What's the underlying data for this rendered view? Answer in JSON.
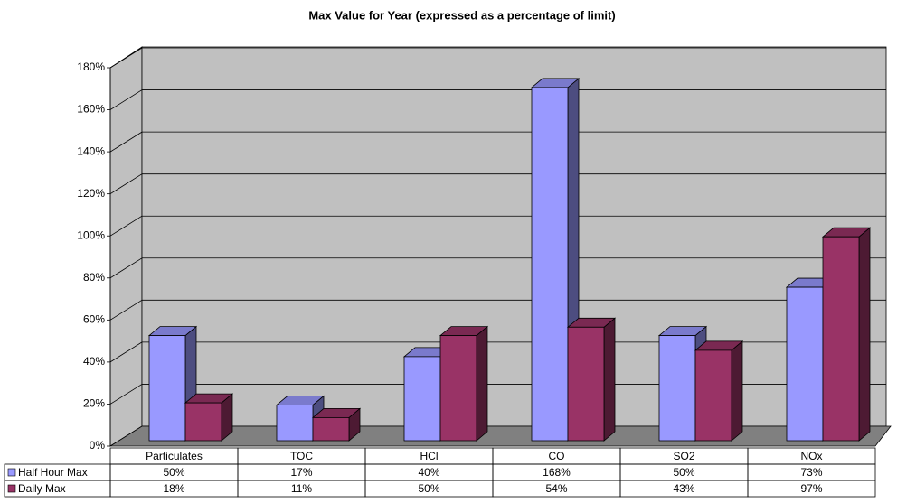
{
  "chart_data": {
    "type": "bar3d",
    "title": "Max Value for Year (expressed as a percentage of limit)",
    "categories": [
      "Particulates",
      "TOC",
      "HCl",
      "CO",
      "SO2",
      "NOx"
    ],
    "series": [
      {
        "name": "Half Hour Max",
        "color": "#9999ff",
        "values": [
          50,
          17,
          40,
          168,
          50,
          73
        ],
        "value_labels": [
          "50%",
          "17%",
          "40%",
          "168%",
          "50%",
          "73%"
        ]
      },
      {
        "name": "Daily Max",
        "color": "#993366",
        "values": [
          18,
          11,
          50,
          54,
          43,
          97
        ],
        "value_labels": [
          "18%",
          "11%",
          "50%",
          "54%",
          "43%",
          "97%"
        ]
      }
    ],
    "ylim": [
      0,
      180
    ],
    "yticks": [
      {
        "value": 0,
        "label": "0%"
      },
      {
        "value": 20,
        "label": "20%"
      },
      {
        "value": 40,
        "label": "40%"
      },
      {
        "value": 60,
        "label": "60%"
      },
      {
        "value": 80,
        "label": "80%"
      },
      {
        "value": 100,
        "label": "100%"
      },
      {
        "value": 120,
        "label": "120%"
      },
      {
        "value": 140,
        "label": "140%"
      },
      {
        "value": 160,
        "label": "160%"
      },
      {
        "value": 180,
        "label": "180%"
      }
    ],
    "grid": true
  }
}
